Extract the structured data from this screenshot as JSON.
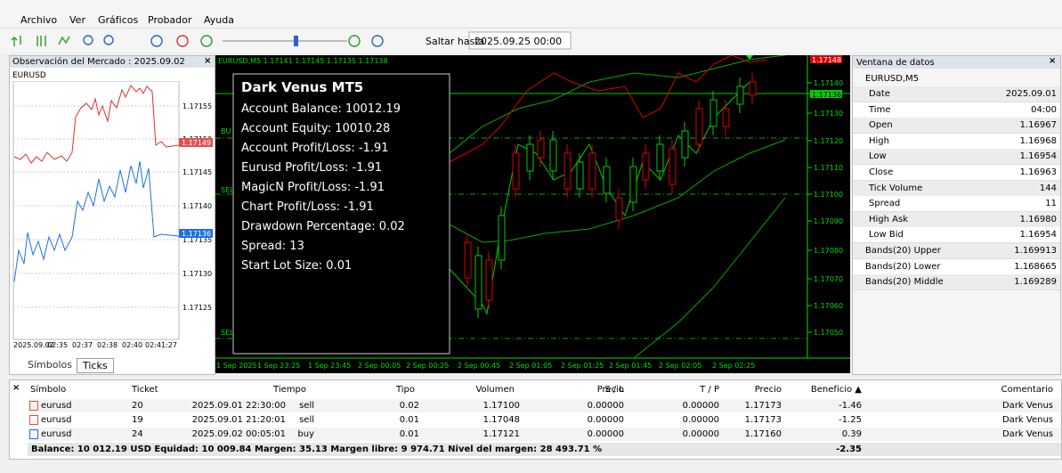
{
  "menu": [
    "Archivo",
    "Ver",
    "Gráficos",
    "Probador",
    "Ayuda"
  ],
  "toolbar": {
    "jump_label": "Saltar hasta",
    "jump_date": "2025.09.25 00:00"
  },
  "market_watch": {
    "title": "Observación del Mercado : 2025.09.02",
    "symbol": "EURUSD",
    "price_labels": [
      "1.17155",
      "1.17150",
      "1.17145",
      "1.17140",
      "1.17135",
      "1.17130",
      "1.17125"
    ],
    "red_price": "1.17149",
    "blue_price": "1.17136",
    "time_labels": [
      "2025.09.02",
      "02:35",
      "02:37",
      "02:38",
      "02:40",
      "02:41:27"
    ],
    "tabs": [
      "Símbolos",
      "Ticks"
    ]
  },
  "chart": {
    "header": "EURUSD,M5  1.17141 1.17145 1.17135 1.17138",
    "info_title": "Dark Venus MT5",
    "info_lines": [
      "Account Balance: 10012.19",
      "Account Equity: 10010.28",
      "Account Profit/Loss: -1.91",
      "Eurusd Profit/Loss: -1.91",
      "MagicN Profit/Loss: -1.91",
      "Chart Profit/Loss: -1.91",
      "Drawdown Percentage: 0.02",
      "Spread: 13",
      "Start Lot Size: 0.01"
    ],
    "price_labels": [
      "1.17140",
      "1.17130",
      "1.17120",
      "1.17110",
      "1.17100",
      "1.17090",
      "1.17080",
      "1.17070",
      "1.17060",
      "1.17050"
    ],
    "red_price": "1.17148",
    "green_price": "1.17136",
    "time_labels": [
      "1 Sep 2025",
      "1 Sep 23:25",
      "1 Sep 23:45",
      "2 Sep 00:05",
      "2 Sep 00:25",
      "2 Sep 00:45",
      "2 Sep 01:05",
      "2 Sep 01:25",
      "2 Sep 01:45",
      "2 Sep 02:05",
      "2 Sep 02:25"
    ],
    "trade_labels": [
      "BU",
      "SEL",
      "SEL"
    ]
  },
  "data_window": {
    "title": "Ventana de datos",
    "symbol": "EURUSD,M5",
    "rows": [
      [
        "Date",
        "2025.09.01"
      ],
      [
        "Time",
        "04:00"
      ],
      [
        "Open",
        "1.16967"
      ],
      [
        "High",
        "1.16968"
      ],
      [
        "Low",
        "1.16954"
      ],
      [
        "Close",
        "1.16963"
      ],
      [
        "Tick Volume",
        "144"
      ],
      [
        "Spread",
        "11"
      ],
      [
        "High Ask",
        "1.16980"
      ],
      [
        "Low Bid",
        "1.16954"
      ],
      [
        "Bands(20) Upper",
        "1.169913"
      ],
      [
        "Bands(20) Lower",
        "1.168665"
      ],
      [
        "Bands(20) Middle",
        "1.169289"
      ]
    ]
  },
  "trades": {
    "columns": [
      "Símbolo",
      "Ticket",
      "Tiempo",
      "Tipo",
      "Volumen",
      "Precio",
      "S / L",
      "T / P",
      "Precio",
      "Beneficio ▲",
      "Comentario"
    ],
    "rows": [
      [
        "eurusd",
        "20",
        "2025.09.01 22:30:00",
        "sell",
        "0.02",
        "1.17100",
        "0.00000",
        "0.00000",
        "1.17173",
        "-1.46",
        "Dark Venus"
      ],
      [
        "eurusd",
        "19",
        "2025.09.01 21:20:01",
        "sell",
        "0.01",
        "1.17048",
        "0.00000",
        "0.00000",
        "1.17173",
        "-1.25",
        "Dark Venus"
      ],
      [
        "eurusd",
        "24",
        "2025.09.02 00:05:01",
        "buy",
        "0.01",
        "1.17121",
        "0.00000",
        "0.00000",
        "1.17160",
        "0.39",
        "Dark Venus"
      ]
    ],
    "summary": "Balance: 10 012.19 USD  Equidad: 10 009.84  Margen: 35.13  Margen libre: 9 974.71  Nivel del margen: 28 493.71 %",
    "summary_profit": "-2.35"
  }
}
